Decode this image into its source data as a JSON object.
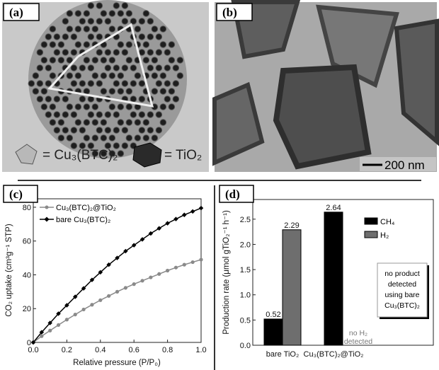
{
  "panels": {
    "a": {
      "label": "(a)",
      "legend_cu": "= Cu₃(BTC)₂",
      "legend_ti": "= TiO₂"
    },
    "b": {
      "label": "(b)",
      "scale_bar": "200 nm"
    },
    "c": {
      "label": "(c)"
    },
    "d": {
      "label": "(d)"
    }
  },
  "chart_data": [
    {
      "panel": "c",
      "type": "line",
      "xlabel": "Relative pressure (P/P₀)",
      "ylabel": "CO₂ uptake (cm³g⁻¹ STP)",
      "xlim": [
        0,
        1.0
      ],
      "ylim": [
        0,
        85
      ],
      "xticks": [
        "0.0",
        "0.2",
        "0.4",
        "0.6",
        "0.8",
        "1.0"
      ],
      "yticks": [
        "0",
        "20",
        "40",
        "60",
        "80"
      ],
      "legend_position": "top-left",
      "x": [
        0,
        0.05,
        0.1,
        0.15,
        0.2,
        0.25,
        0.3,
        0.35,
        0.4,
        0.45,
        0.5,
        0.55,
        0.6,
        0.65,
        0.7,
        0.75,
        0.8,
        0.85,
        0.9,
        0.95,
        1.0
      ],
      "series": [
        {
          "name": "Cu₃(BTC)₂@TiO₂",
          "color": "#8a8a8a",
          "marker": "circle",
          "values": [
            0,
            3.7,
            7,
            10.3,
            13.5,
            16.5,
            19.5,
            22.3,
            25,
            27.5,
            30,
            32.3,
            34.5,
            36.5,
            38.5,
            40.5,
            42.5,
            44.3,
            46,
            47.5,
            49
          ]
        },
        {
          "name": "bare Cu₃(BTC)₂",
          "color": "#000000",
          "marker": "diamond",
          "values": [
            0,
            6,
            11.5,
            17,
            22,
            27,
            32,
            37,
            41.5,
            46,
            50,
            54,
            57.5,
            61,
            64.5,
            67.5,
            70.5,
            73,
            75.5,
            77.5,
            79.5
          ]
        }
      ]
    },
    {
      "panel": "d",
      "type": "bar",
      "ylabel": "Production rate (μmol gTiO₂⁻¹ h⁻¹)",
      "ylim": [
        0,
        2.89
      ],
      "yticks": [
        "0.0",
        "0.5",
        "1.0",
        "1.5",
        "2.0",
        "2.5"
      ],
      "categories": [
        "bare TiO₂",
        "Cu₃(BTC)₂@TiO₂"
      ],
      "legend_position": "top-right",
      "series": [
        {
          "name": "CH₄",
          "color": "#000000",
          "values": [
            0.52,
            2.64
          ],
          "labels": [
            "0.52",
            "2.64"
          ]
        },
        {
          "name": "H₂",
          "color": "#6e6e6e",
          "values": [
            2.29,
            null
          ],
          "labels": [
            "2.29",
            ""
          ]
        }
      ],
      "annotations": {
        "no_h2": [
          "no H₂",
          "detected"
        ],
        "note": [
          "no product",
          "detected",
          "using bare",
          "Cu₃(BTC)₂"
        ]
      }
    }
  ]
}
